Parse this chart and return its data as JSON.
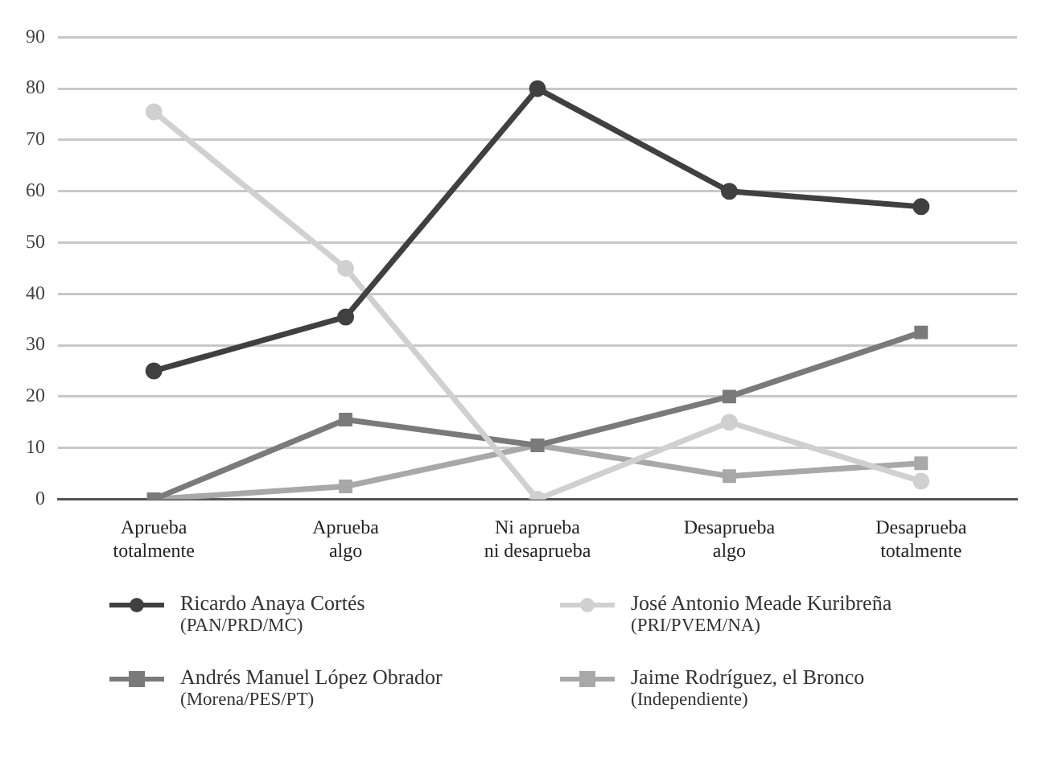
{
  "chart_data": {
    "type": "line",
    "categories": [
      "Aprueba\ntotalmente",
      "Aprueba\nalgo",
      "Ni aprueba\nni desaprueba",
      "Desaprueba\nalgo",
      "Desaprueba\ntotalmente"
    ],
    "series": [
      {
        "name": "Ricardo Anaya Cortés\n(PAN/PRD/MC)",
        "color": "#404040",
        "marker": "circle",
        "values": [
          25,
          35.5,
          80,
          60,
          57
        ]
      },
      {
        "name": "José Antonio Meade Kuribreña\n(PRI/PVEM/NA)",
        "color": "#d0d0d0",
        "marker": "circle",
        "values": [
          75.5,
          45,
          0,
          15,
          3.5
        ]
      },
      {
        "name": "Andrés Manuel López Obrador\n(Morena/PES/PT)",
        "color": "#7a7a7a",
        "marker": "square",
        "values": [
          0,
          15.5,
          10.5,
          20,
          32.5
        ]
      },
      {
        "name": "Jaime Rodríguez, el Bronco\n(Independiente)",
        "color": "#a8a8a8",
        "marker": "square",
        "values": [
          0,
          2.5,
          10.5,
          4.5,
          7
        ]
      }
    ],
    "ylim": [
      0,
      90
    ],
    "yticks": [
      0,
      10,
      20,
      30,
      40,
      50,
      60,
      70,
      80,
      90
    ],
    "grid": "y",
    "legend": "bottom"
  }
}
